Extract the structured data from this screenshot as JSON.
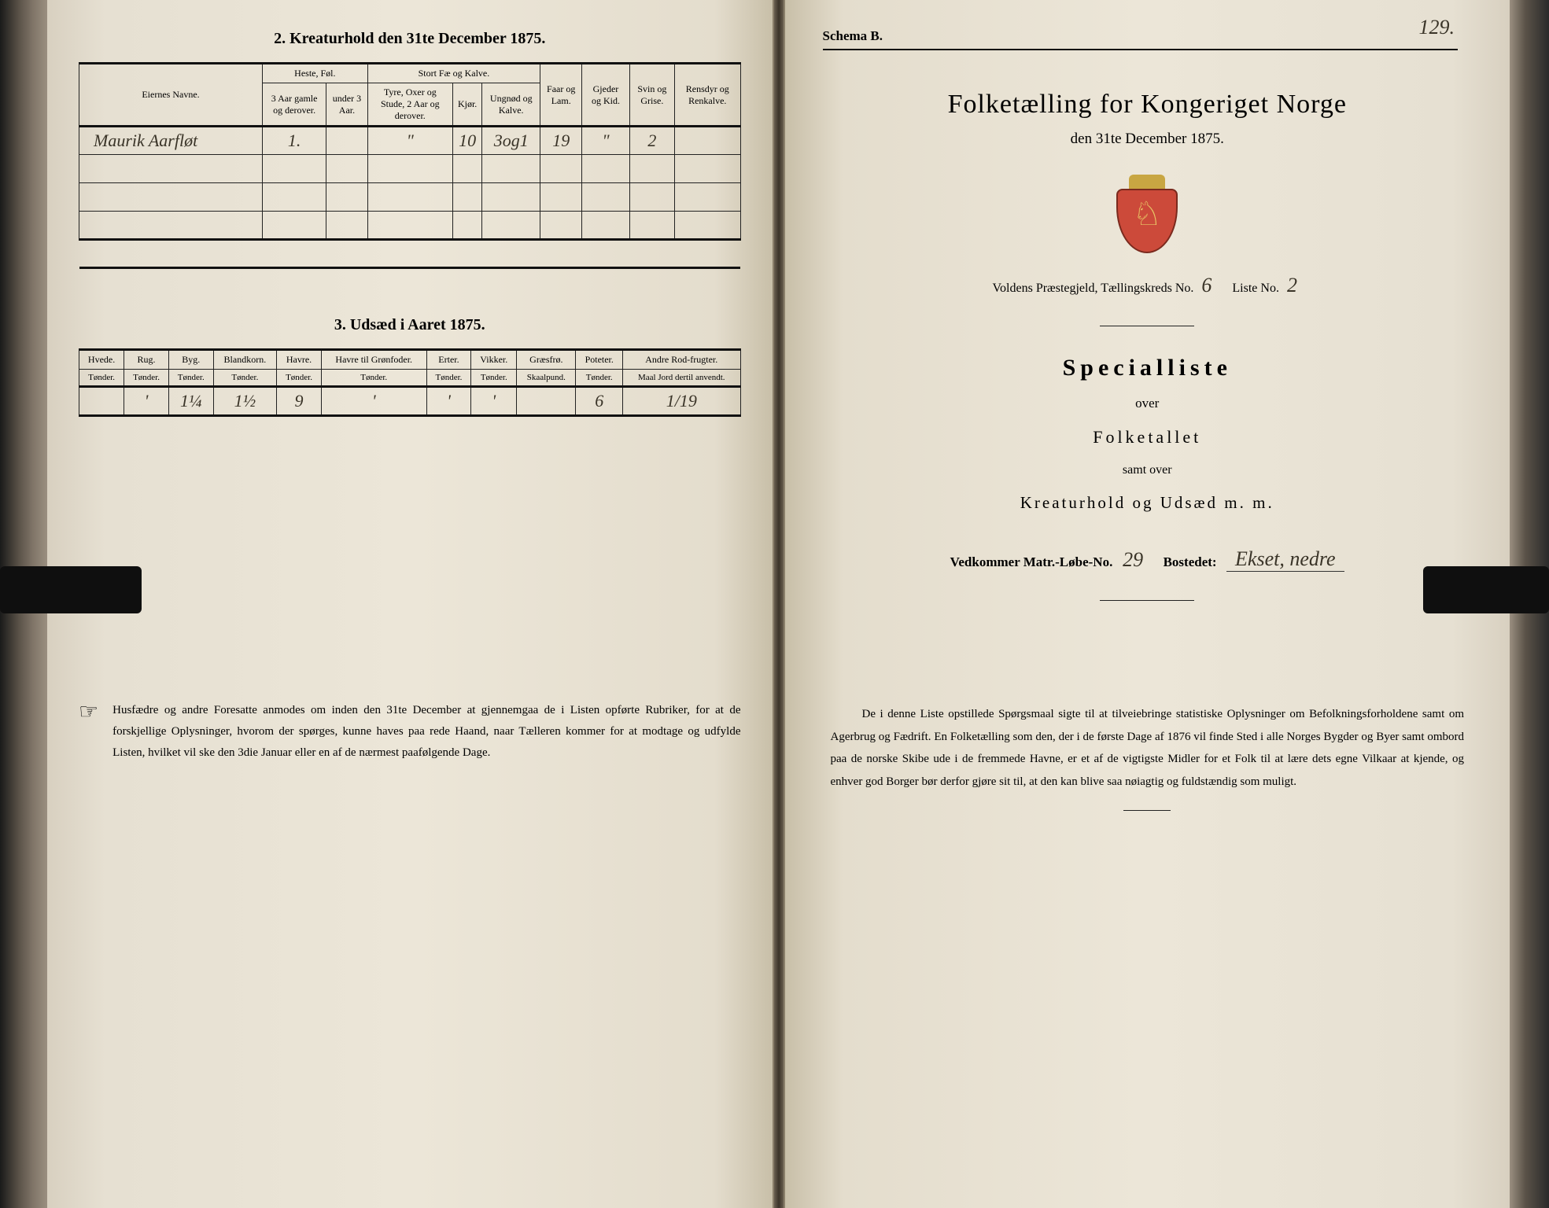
{
  "left": {
    "section2_title": "2.  Kreaturhold den 31te December 1875.",
    "table2": {
      "head_owner": "Eiernes Navne.",
      "grp_horse": "Heste, Føl.",
      "grp_cattle": "Stort Fæ og Kalve.",
      "col_horse_old": "3 Aar gamle og derover.",
      "col_horse_young": "under 3 Aar.",
      "col_ox": "Tyre, Oxer og Stude, 2 Aar og derover.",
      "col_cow": "Kjør.",
      "col_calf": "Ungnød og Kalve.",
      "col_sheep": "Faar og Lam.",
      "col_goat": "Gjeder og Kid.",
      "col_pig": "Svin og Grise.",
      "col_rein": "Rensdyr og Renkalve.",
      "row": {
        "owner": "Maurik  Aarfløt",
        "horse_old": "1.",
        "horse_young": "",
        "ox": "\"",
        "cow": "10",
        "calf": "3og1",
        "sheep": "19",
        "goat": "\"",
        "pig": "2",
        "rein": ""
      }
    },
    "section3_title": "3.  Udsæd i Aaret 1875.",
    "table3": {
      "cols": [
        "Hvede.",
        "Rug.",
        "Byg.",
        "Blandkorn.",
        "Havre.",
        "Havre til Grønfoder.",
        "Erter.",
        "Vikker.",
        "Græsfrø.",
        "Poteter.",
        "Andre Rod-frugter."
      ],
      "units": [
        "Tønder.",
        "Tønder.",
        "Tønder.",
        "Tønder.",
        "Tønder.",
        "Tønder.",
        "Tønder.",
        "Tønder.",
        "Skaalpund.",
        "Tønder.",
        "Maal Jord dertil anvendt."
      ],
      "row": [
        "",
        "'",
        "1¼",
        "1½",
        "9",
        "'",
        "'",
        "'",
        "",
        "6",
        "1/19"
      ]
    },
    "footer": "Husfædre og andre Foresatte anmodes om inden den 31te December at gjennemgaa de i Listen opførte Rubriker, for at de forskjellige Oplysninger, hvorom der spørges, kunne haves paa rede Haand, naar Tælleren kommer for at modtage og udfylde Listen, hvilket vil ske den 3die Januar eller en af de nærmest paafølgende Dage."
  },
  "right": {
    "page_number": "129.",
    "schema": "Schema B.",
    "title": "Folketælling for Kongeriget Norge",
    "subtitle": "den 31te December 1875.",
    "district_prefix": "Voldens Præstegjeld,   Tællingskreds No.",
    "district_no": "6",
    "liste_label": "Liste No.",
    "liste_no": "2",
    "special": "Specialliste",
    "over": "over",
    "folketallet": "Folketallet",
    "samt": "samt over",
    "kreatur": "Kreaturhold og Udsæd m. m.",
    "matr_label": "Vedkommer Matr.-Løbe-No.",
    "matr_no": "29",
    "bosted_label": "Bostedet:",
    "bosted": "Ekset, nedre",
    "body": "De i denne Liste opstillede Spørgsmaal sigte til at tilveiebringe statistiske Oplysninger om Befolkningsforholdene samt om Agerbrug og Fædrift.  En Folketælling som den, der i de første Dage af 1876 vil finde Sted i alle Norges Bygder og Byer samt ombord paa de norske Skibe ude i de fremmede Havne, er et af de vigtigste Midler for et Folk til at lære dets egne Vilkaar at kjende, og enhver god Borger bør derfor gjøre sit til, at den kan blive saa nøiagtig og fuldstændig som muligt."
  },
  "style": {
    "paper_bg": "#ece6d8",
    "ink": "#1a1a1a",
    "hand_ink": "#3a3428",
    "crest_red": "#cc4a3a"
  }
}
